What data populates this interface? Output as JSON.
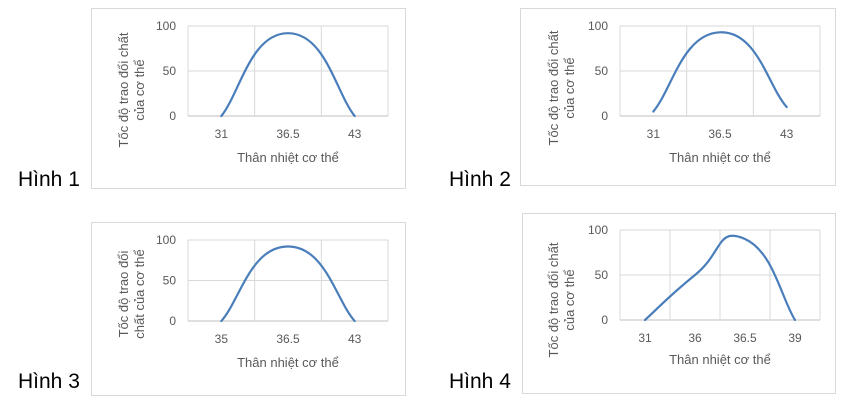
{
  "chart_data": [
    {
      "type": "line",
      "figure_label": "Hình 1",
      "categories": [
        "31",
        "36.5",
        "43"
      ],
      "values": [
        0,
        92,
        0
      ],
      "smooth": true,
      "xlabel": "Thân nhiệt cơ thể",
      "ylabel": [
        "Tốc độ trao đổi chất",
        "của cơ thể"
      ],
      "ylim": [
        0,
        100
      ],
      "yticks": [
        0,
        50,
        100
      ],
      "grid": true,
      "color": "#4a7ebb"
    },
    {
      "type": "line",
      "figure_label": "Hình 2",
      "categories": [
        "31",
        "36.5",
        "43"
      ],
      "values": [
        5,
        93,
        10
      ],
      "smooth": true,
      "xlabel": "Thân nhiệt cơ thể",
      "ylabel": [
        "Tốc độ trao đổi chất",
        "của cơ thể"
      ],
      "ylim": [
        0,
        100
      ],
      "yticks": [
        0,
        50,
        100
      ],
      "grid": true,
      "color": "#4a7ebb"
    },
    {
      "type": "line",
      "figure_label": "Hình 3",
      "categories": [
        "35",
        "36.5",
        "43"
      ],
      "values": [
        0,
        92,
        0
      ],
      "smooth": true,
      "xlabel": "Thân nhiệt cơ thể",
      "ylabel": [
        "Tốc độ trao đổi",
        "chất của cơ thể"
      ],
      "ylim": [
        0,
        100
      ],
      "yticks": [
        0,
        50,
        100
      ],
      "grid": true,
      "color": "#4a7ebb"
    },
    {
      "type": "line",
      "figure_label": "Hình 4",
      "categories": [
        "31",
        "36",
        "36.5",
        "39"
      ],
      "values": [
        0,
        50,
        90,
        0
      ],
      "smooth": true,
      "xlabel": "Thân nhiệt cơ thể",
      "ylabel": [
        "Tốc độ trao đổi chất",
        "của cơ thể"
      ],
      "ylim": [
        0,
        100
      ],
      "yticks": [
        0,
        50,
        100
      ],
      "grid": true,
      "color": "#4a7ebb"
    }
  ]
}
